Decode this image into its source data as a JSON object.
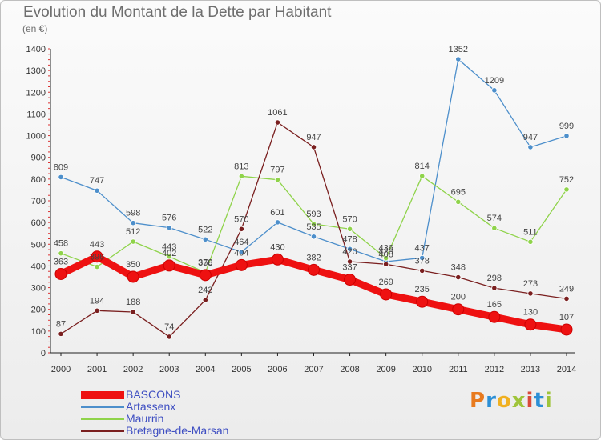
{
  "title": "Evolution du Montant de la Dette par Habitant",
  "unit": "(en €)",
  "logo": {
    "text": "Proxiti",
    "colors": [
      "#e87a1e",
      "#2c8fd6",
      "#f0b020",
      "#9fc43a",
      "#d94a3a",
      "#2c8fd6",
      "#9fc43a"
    ]
  },
  "chart_data": {
    "type": "line",
    "title": "Evolution du Montant de la Dette par Habitant",
    "ylabel": "(en €)",
    "xlabel": "",
    "x": [
      "2000",
      "2001",
      "2002",
      "2003",
      "2004",
      "2005",
      "2006",
      "2007",
      "2008",
      "2009",
      "2010",
      "2011",
      "2012",
      "2013",
      "2014"
    ],
    "yticks": [
      0,
      100,
      200,
      300,
      400,
      500,
      600,
      700,
      800,
      900,
      1000,
      1100,
      1200,
      1300,
      1400
    ],
    "ylim": [
      0,
      1400
    ],
    "grid": false,
    "legend_position": "bottom-left",
    "series": [
      {
        "name": "BASCONS",
        "color": "#ee1111",
        "values": [
          363,
          443,
          350,
          402,
          358,
          404,
          430,
          382,
          337,
          269,
          235,
          200,
          165,
          130,
          107
        ],
        "labels": [
          "363",
          "443",
          "350",
          "402",
          "358",
          "404",
          "430",
          "382",
          "337",
          "269",
          "235",
          "200",
          "165",
          "130",
          "107"
        ]
      },
      {
        "name": "Artassenx",
        "color": "#4d8fcb",
        "values": [
          809,
          747,
          598,
          576,
          522,
          464,
          601,
          535,
          478,
          420,
          437,
          1352,
          1209,
          947,
          999
        ],
        "labels": [
          "809",
          "747",
          "598",
          "576",
          "522",
          "464",
          "601",
          "535",
          "478",
          "420",
          "437",
          "1352",
          "1209",
          "947",
          "999"
        ]
      },
      {
        "name": "Maurrin",
        "color": "#8fd34a",
        "values": [
          458,
          396,
          512,
          443,
          370,
          813,
          797,
          593,
          570,
          436,
          814,
          695,
          574,
          511,
          752
        ],
        "labels": [
          "458",
          "396",
          "512",
          "443",
          "370",
          "813",
          "797",
          "593",
          "570",
          "436",
          "814",
          "695",
          "574",
          "511",
          "752"
        ]
      },
      {
        "name": "Bretagne-de-Marsan",
        "color": "#7a1f1f",
        "values": [
          87,
          194,
          188,
          74,
          243,
          570,
          1061,
          947,
          420,
          408,
          378,
          348,
          298,
          273,
          249
        ],
        "labels": [
          "87",
          "194",
          "188",
          "74",
          "243",
          "570",
          "1061",
          "947",
          "420",
          "408",
          "378",
          "348",
          "298",
          "273",
          "249"
        ]
      }
    ]
  }
}
